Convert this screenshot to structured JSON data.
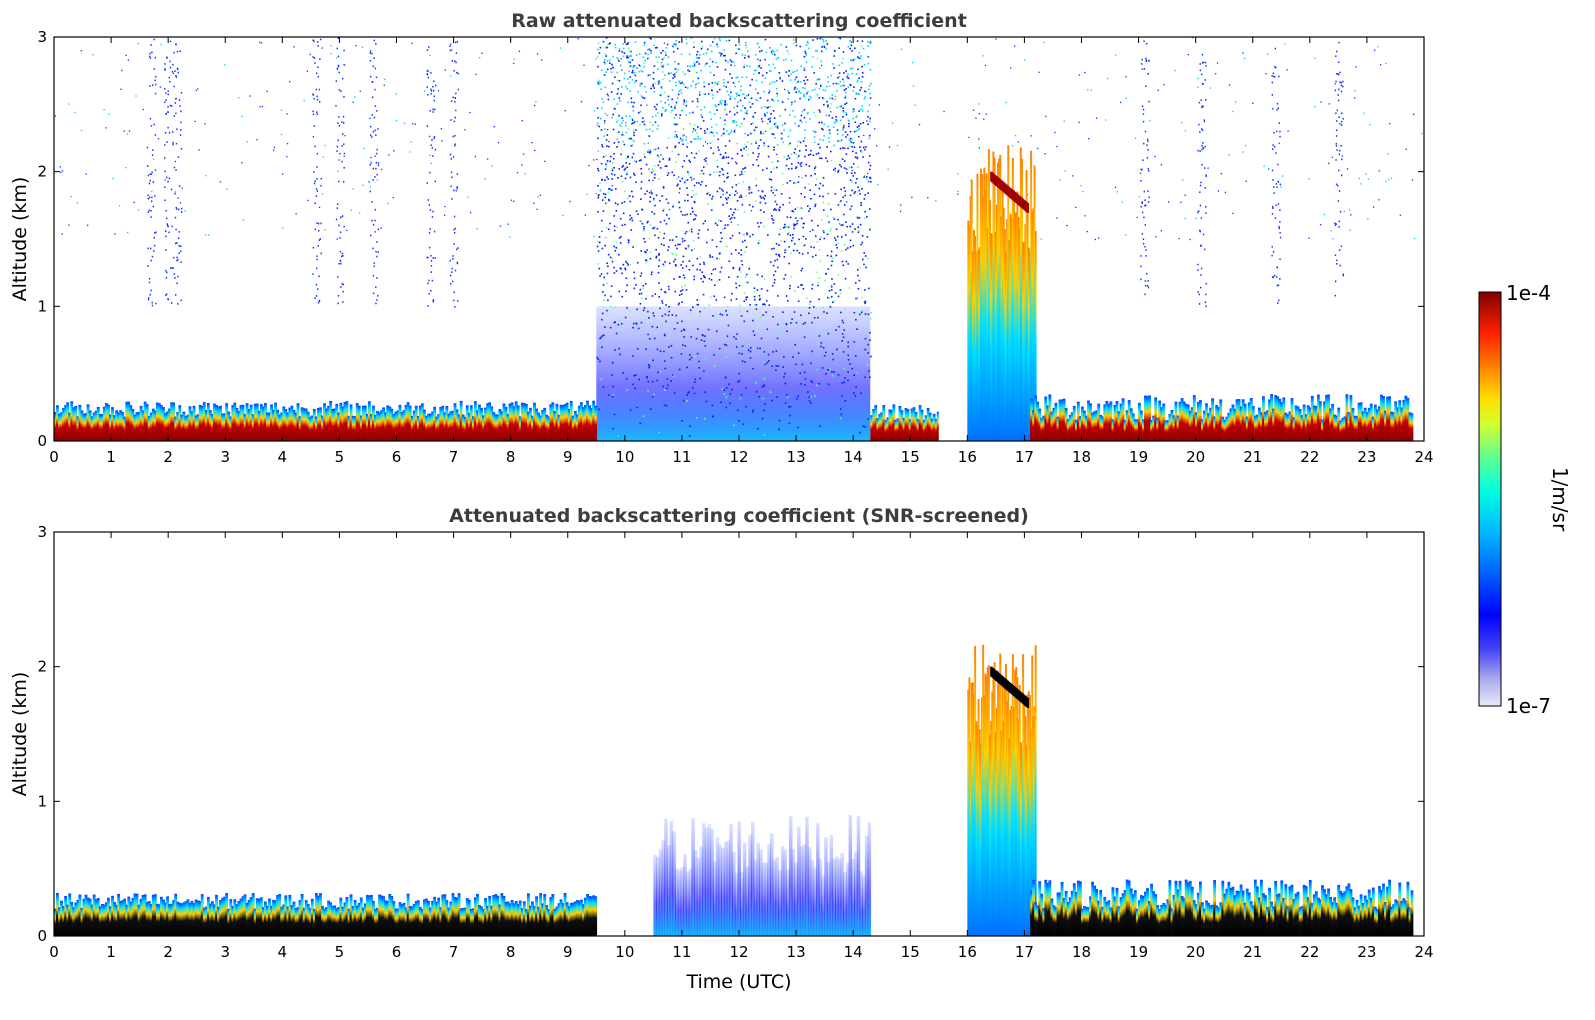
{
  "chart_data": [
    {
      "type": "heatmap",
      "title": "Raw attenuated backscattering coefficient",
      "xlabel": "",
      "ylabel": "Altitude (km)",
      "xlim": [
        0,
        24
      ],
      "ylim": [
        0,
        3
      ],
      "xticks": [
        "0",
        "1",
        "2",
        "3",
        "4",
        "5",
        "6",
        "7",
        "8",
        "9",
        "10",
        "11",
        "12",
        "13",
        "14",
        "15",
        "16",
        "17",
        "18",
        "19",
        "20",
        "21",
        "22",
        "23",
        "24"
      ],
      "yticks": [
        "0",
        "1",
        "2",
        "3"
      ],
      "grid": false,
      "colorscale": "jet",
      "features": [
        {
          "kind": "boundary-layer",
          "x": [
            0,
            9.5
          ],
          "y_top_km": [
            0.18,
            0.3
          ],
          "level": "high"
        },
        {
          "kind": "boundary-layer",
          "x": [
            14.3,
            15.5
          ],
          "y_top_km": [
            0.15,
            0.28
          ],
          "level": "high"
        },
        {
          "kind": "boundary-layer",
          "x": [
            17.1,
            23.8
          ],
          "y_top_km": [
            0.15,
            0.35
          ],
          "level": "high"
        },
        {
          "kind": "noise",
          "x": [
            9.5,
            14.3
          ],
          "y_km": [
            0,
            3
          ],
          "level": "low"
        },
        {
          "kind": "cloud",
          "x": [
            16.0,
            17.2
          ],
          "y_km": [
            0,
            2.2
          ],
          "level": "high"
        },
        {
          "kind": "data-gap",
          "x": [
            15.5,
            15.55
          ]
        }
      ]
    },
    {
      "type": "heatmap",
      "title": "Attenuated backscattering coefficient (SNR-screened)",
      "xlabel": "Time (UTC)",
      "ylabel": "Altitude (km)",
      "xlim": [
        0,
        24
      ],
      "ylim": [
        0,
        3
      ],
      "xticks": [
        "0",
        "1",
        "2",
        "3",
        "4",
        "5",
        "6",
        "7",
        "8",
        "9",
        "10",
        "11",
        "12",
        "13",
        "14",
        "15",
        "16",
        "17",
        "18",
        "19",
        "20",
        "21",
        "22",
        "23",
        "24"
      ],
      "yticks": [
        "0",
        "1",
        "2",
        "3"
      ],
      "grid": false,
      "colorscale": "jet",
      "features": [
        {
          "kind": "boundary-layer",
          "x": [
            0,
            9.5
          ],
          "y_top_km": [
            0.2,
            0.32
          ],
          "level": "saturated"
        },
        {
          "kind": "aerosol-layer",
          "x": [
            10.5,
            14.3
          ],
          "y_km": [
            0,
            0.9
          ],
          "level": "low"
        },
        {
          "kind": "cloud",
          "x": [
            16.0,
            17.2
          ],
          "y_km": [
            0,
            2.2
          ],
          "level": "high"
        },
        {
          "kind": "boundary-layer",
          "x": [
            17.1,
            23.8
          ],
          "y_top_km": [
            0.2,
            0.42
          ],
          "level": "saturated"
        }
      ]
    }
  ],
  "colorbar": {
    "max_label": "1e-4",
    "min_label": "1e-7",
    "unit": "1/m/sr",
    "colors": [
      "#e8e8f8",
      "#b0b0ef",
      "#6666ef",
      "#0000ff",
      "#0060ff",
      "#00b0ff",
      "#00ffe0",
      "#60ff90",
      "#d0ff30",
      "#ffe000",
      "#ff8000",
      "#ff2000",
      "#c00000",
      "#800000"
    ]
  }
}
